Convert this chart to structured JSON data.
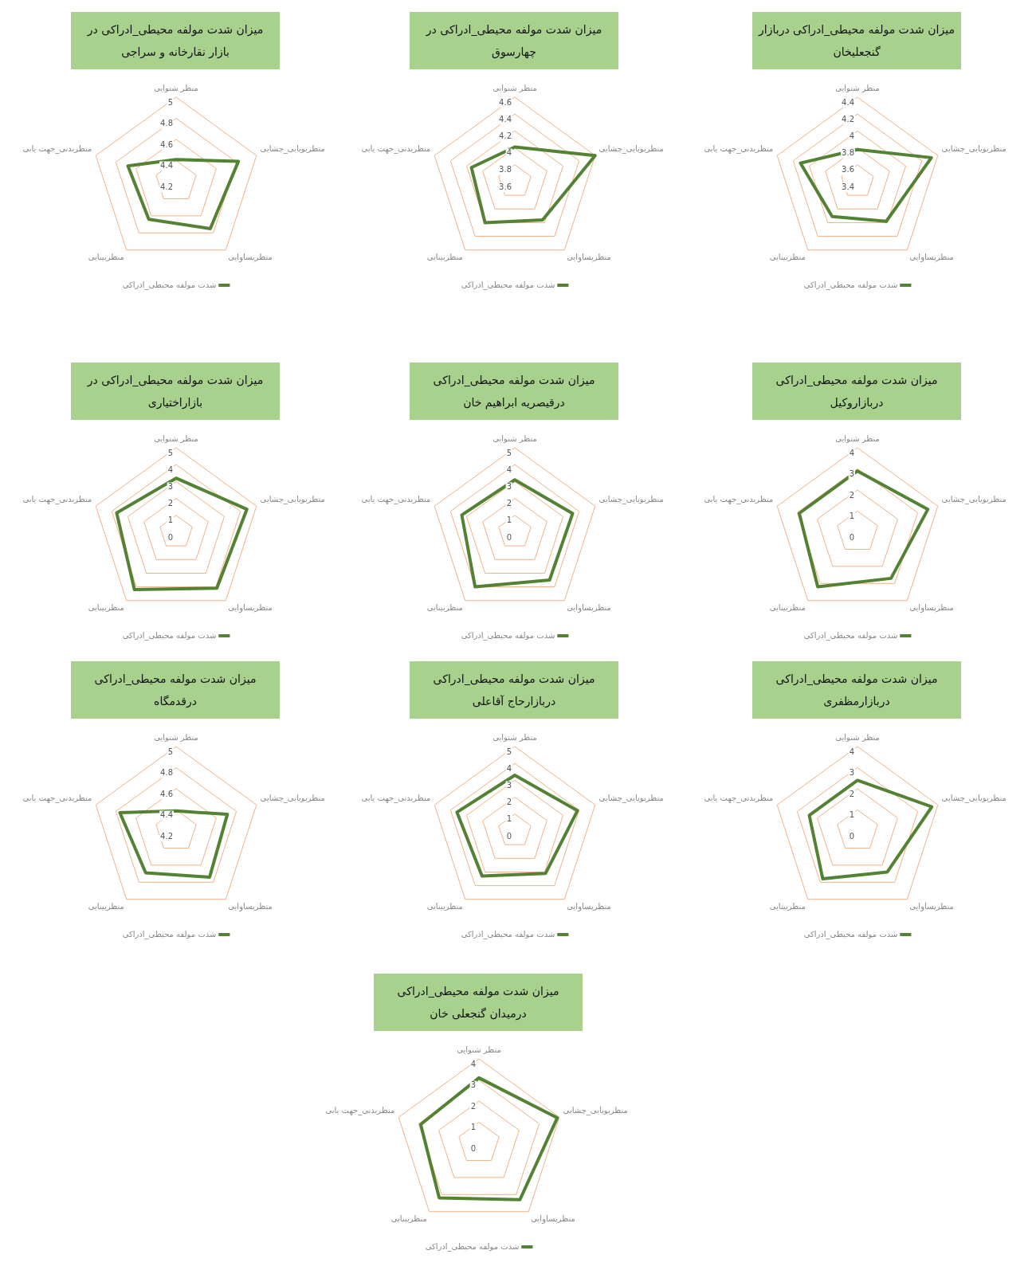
{
  "chart_data": [
    {
      "type": "radar",
      "title": "میزان شدت مولفه محیطی_ادراکی در بازار نقارخانه و سراجی",
      "categories": [
        "منظر شنوایی",
        "منظربویایی_چشایی",
        "منظرپساوایی",
        "منظربینایی",
        "منظربدنی_جهت یابی"
      ],
      "series": [
        {
          "name": "شدت مولفه محیطی_ادراکی",
          "color": "#548235",
          "values": [
            4.41,
            4.82,
            4.75,
            4.64,
            4.68
          ]
        }
      ],
      "ylim": [
        4.2,
        5
      ],
      "yticks": [
        4.2,
        4.4,
        4.6,
        4.8,
        5
      ],
      "grid": true,
      "legend": "bottom",
      "marker": "none"
    },
    {
      "type": "radar",
      "title": "میزان شدت مولفه محیطی_ادراکی در چهارسوق",
      "categories": [
        "منظر شنوایی",
        "منظربویایی_چشایی",
        "منظرپساوایی",
        "منظربینایی",
        "منظربدنی_جهت یابی"
      ],
      "series": [
        {
          "name": "شدت مولفه محیطی_ادراکی",
          "color": "#548235",
          "values": [
            4.01,
            4.6,
            4.16,
            4.2,
            4.14
          ]
        }
      ],
      "ylim": [
        3.6,
        4.6
      ],
      "yticks": [
        3.6,
        3.8,
        4,
        4.2,
        4.4,
        4.6
      ],
      "grid": true,
      "legend": "bottom",
      "marker": "none"
    },
    {
      "type": "radar",
      "title": "میزان شدت مولفه محیطی_ادراکی دربازار گنجعلیخان",
      "categories": [
        "منظر شنوایی",
        "منظربویایی_چشایی",
        "منظرپساوایی",
        "منظربینایی",
        "منظربدنی_جهت یابی"
      ],
      "series": [
        {
          "name": "شدت مولفه محیطی_ادراکی",
          "color": "#548235",
          "values": [
            3.78,
            4.32,
            3.98,
            3.91,
            4.11
          ]
        }
      ],
      "ylim": [
        3.4,
        4.4
      ],
      "yticks": [
        3.4,
        3.6,
        3.8,
        4,
        4.2,
        4.4
      ],
      "grid": true,
      "legend": "bottom",
      "marker": "none"
    },
    {
      "type": "radar",
      "title": "میزان شدت مولفه محیطی_ادراکی در بازاراختیاری",
      "categories": [
        "منظر شنوایی",
        "منظربویایی_چشایی",
        "منظرپساوایی",
        "منظربینایی",
        "منظربدنی_جهت یابی"
      ],
      "series": [
        {
          "name": "شدت مولفه محیطی_ادراکی",
          "color": "#548235",
          "values": [
            3.2,
            4.4,
            4.1,
            4.2,
            3.7
          ]
        }
      ],
      "ylim": [
        0,
        5
      ],
      "yticks": [
        0,
        1,
        2,
        3,
        4,
        5
      ],
      "grid": true,
      "legend": "bottom",
      "marker": "none"
    },
    {
      "type": "radar",
      "title": "میزان شدت مولفه محیطی_ادراکی درقیصریه ابراهیم خان",
      "categories": [
        "منظر شنوایی",
        "منظربویایی_چشایی",
        "منظرپساوایی",
        "منظربینایی",
        "منظربدنی_جهت یابی"
      ],
      "series": [
        {
          "name": "شدت مولفه محیطی_ادراکی",
          "color": "#548235",
          "values": [
            3.1,
            3.6,
            3.5,
            4,
            3.3
          ]
        }
      ],
      "ylim": [
        0,
        5
      ],
      "yticks": [
        0,
        1,
        2,
        3,
        4,
        5
      ],
      "grid": true,
      "legend": "bottom",
      "marker": "none"
    },
    {
      "type": "radar",
      "title": "میزان شدت مولفه محیطی_ادراکی دربازاروکیل",
      "categories": [
        "منظر شنوایی",
        "منظربویایی_چشایی",
        "منظرپساوایی",
        "منظربینایی",
        "منظربدنی_جهت یابی"
      ],
      "series": [
        {
          "name": "شدت مولفه محیطی_ادراکی",
          "color": "#548235",
          "values": [
            2.9,
            3.5,
            2.7,
            3.2,
            2.9
          ]
        }
      ],
      "ylim": [
        0,
        4
      ],
      "yticks": [
        0,
        1,
        2,
        3,
        4
      ],
      "grid": true,
      "legend": "bottom",
      "marker": "none"
    },
    {
      "type": "radar",
      "title": "میزان شدت مولفه محیطی_ادراکی درقدمگاه",
      "categories": [
        "منظر شنوایی",
        "منظربویایی_چشایی",
        "منظرپساوایی",
        "منظربینایی",
        "منظربدنی_جهت یابی"
      ],
      "series": [
        {
          "name": "شدت مولفه محیطی_ادراکی",
          "color": "#548235",
          "values": [
            4.39,
            4.71,
            4.74,
            4.69,
            4.76
          ]
        }
      ],
      "ylim": [
        4.2,
        5
      ],
      "yticks": [
        4.2,
        4.4,
        4.6,
        4.8,
        5
      ],
      "grid": true,
      "legend": "bottom",
      "marker": "none"
    },
    {
      "type": "radar",
      "title": "میزان شدت مولفه محیطی_ادراکی دربازارحاج آقاعلی",
      "categories": [
        "منظر شنوایی",
        "منظربویایی_چشایی",
        "منظرپساوایی",
        "منظربینایی",
        "منظربدنی_جهت یابی"
      ],
      "series": [
        {
          "name": "شدت مولفه محیطی_ادراکی",
          "color": "#548235",
          "values": [
            3.3,
            3.9,
            3.1,
            3.3,
            3.6
          ]
        }
      ],
      "ylim": [
        0,
        5
      ],
      "yticks": [
        0,
        1,
        2,
        3,
        4,
        5
      ],
      "grid": true,
      "legend": "bottom",
      "marker": "none"
    },
    {
      "type": "radar",
      "title": "میزان شدت مولفه محیطی_ادراکی دربازارمظفری",
      "categories": [
        "منظر شنوایی",
        "منظربویایی_چشایی",
        "منظرپساوایی",
        "منظربینایی",
        "منظربدنی_جهت یابی"
      ],
      "series": [
        {
          "name": "شدت مولفه محیطی_ادراکی",
          "color": "#548235",
          "values": [
            2.4,
            3.7,
            2.4,
            2.8,
            2.4
          ]
        }
      ],
      "ylim": [
        0,
        4
      ],
      "yticks": [
        0,
        1,
        2,
        3,
        4
      ],
      "grid": true,
      "legend": "bottom",
      "marker": "none"
    },
    {
      "type": "radar",
      "title": "میزان شدت مولفه محیطی_ادراکی درمیدان گنجعلی خان",
      "categories": [
        "منظر شنوایی",
        "منظربویایی_چشایی",
        "منظرپساوایی",
        "منظربینایی",
        "منظربدنی_جهت یابی"
      ],
      "series": [
        {
          "name": "شدت مولفه محیطی_ادراکی",
          "color": "#548235",
          "values": [
            3.1,
            3.9,
            3.3,
            3.2,
            2.9
          ]
        }
      ],
      "ylim": [
        0,
        4
      ],
      "yticks": [
        0,
        1,
        2,
        3,
        4
      ],
      "grid": true,
      "legend": "bottom",
      "marker": "none"
    }
  ]
}
